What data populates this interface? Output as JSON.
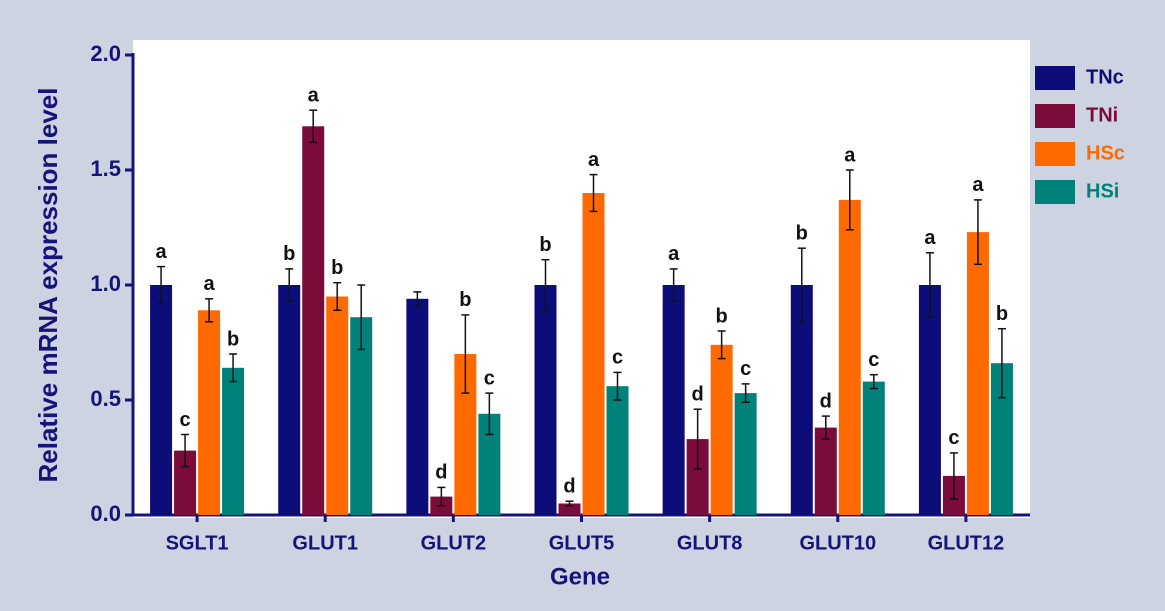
{
  "chart_data": {
    "type": "bar",
    "x_label": "Gene",
    "y_label": "Relative mRNA expression level",
    "categories": [
      "SGLT1",
      "GLUT1",
      "GLUT2",
      "GLUT5",
      "GLUT8",
      "GLUT10",
      "GLUT12"
    ],
    "series": [
      {
        "name": "TNc",
        "color": "#0d0d7a",
        "values": [
          1.0,
          1.0,
          0.94,
          1.0,
          1.0,
          1.0,
          1.0
        ],
        "errors": [
          0.08,
          0.07,
          0.03,
          0.11,
          0.07,
          0.16,
          0.14
        ],
        "letters": [
          "a",
          "b",
          null,
          "b",
          "a",
          "b",
          "a"
        ]
      },
      {
        "name": "TNi",
        "color": "#7a0b3a",
        "values": [
          0.28,
          1.69,
          0.08,
          0.05,
          0.33,
          0.38,
          0.17
        ],
        "errors": [
          0.07,
          0.07,
          0.04,
          0.01,
          0.13,
          0.05,
          0.1
        ],
        "letters": [
          "c",
          "a",
          "d",
          "d",
          "d",
          "d",
          "c"
        ]
      },
      {
        "name": "HSc",
        "color": "#ff6a00",
        "values": [
          0.89,
          0.95,
          0.7,
          1.4,
          0.74,
          1.37,
          1.23
        ],
        "errors": [
          0.05,
          0.06,
          0.17,
          0.08,
          0.06,
          0.13,
          0.14
        ],
        "letters": [
          "a",
          "b",
          "b",
          "a",
          "b",
          "a",
          "a"
        ]
      },
      {
        "name": "HSi",
        "color": "#00827a",
        "values": [
          0.64,
          0.86,
          0.44,
          0.56,
          0.53,
          0.58,
          0.66
        ],
        "errors": [
          0.06,
          0.14,
          0.09,
          0.06,
          0.04,
          0.03,
          0.15
        ],
        "letters": [
          "b",
          null,
          "c",
          "c",
          "c",
          "c",
          "b"
        ]
      }
    ],
    "ylim": [
      0,
      2.0
    ],
    "yticks": [
      {
        "value": 0,
        "label": "0.0"
      },
      {
        "value": 0.5,
        "label": "0.5"
      },
      {
        "value": 1.0,
        "label": "1.0"
      },
      {
        "value": 1.5,
        "label": "1.5"
      },
      {
        "value": 2.0,
        "label": "2.0"
      }
    ],
    "legend": "right"
  }
}
